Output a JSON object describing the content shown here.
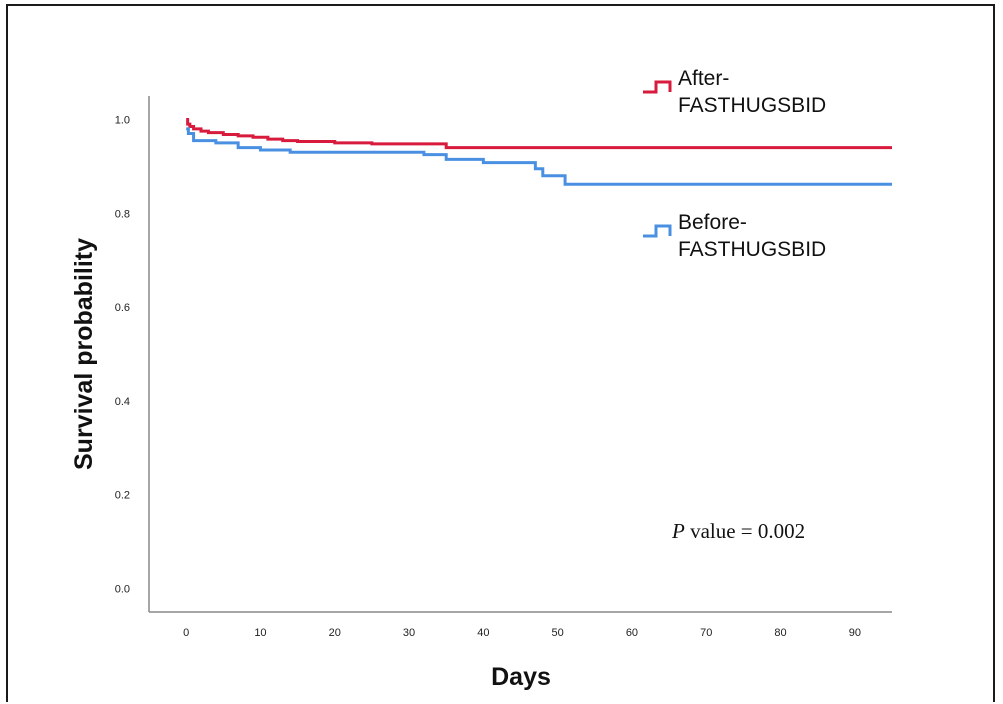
{
  "chart_data": {
    "type": "line",
    "title": "",
    "xlabel": "Days",
    "ylabel": "Survival probability",
    "xlim": [
      -5,
      95
    ],
    "ylim": [
      -0.05,
      1.05
    ],
    "xticks": [
      0,
      10,
      20,
      30,
      40,
      50,
      60,
      70,
      80,
      90
    ],
    "xtick_labels": [
      "0",
      "10",
      "20",
      "30",
      "40",
      "50",
      "60",
      "70",
      "80",
      "90"
    ],
    "yticks": [
      0.0,
      0.2,
      0.4,
      0.6,
      0.8,
      1.0
    ],
    "ytick_labels": [
      "0.0",
      "0.2",
      "0.4",
      "0.6",
      "0.8",
      "1.0"
    ],
    "grid": false,
    "legend_position": "top-right",
    "series": [
      {
        "name": "After-FASTHUGSBID",
        "color": "#d81b3c",
        "step": true,
        "x": [
          0,
          0.2,
          0.5,
          1,
          2,
          3,
          5,
          7,
          9,
          11,
          13,
          15,
          20,
          25,
          35,
          95
        ],
        "y": [
          1.0,
          0.99,
          0.985,
          0.98,
          0.975,
          0.972,
          0.968,
          0.965,
          0.962,
          0.958,
          0.955,
          0.953,
          0.95,
          0.948,
          0.94,
          0.94
        ]
      },
      {
        "name": "Before-FASTHUGSBID",
        "color": "#4a90e2",
        "step": true,
        "x": [
          0,
          0.3,
          1,
          4,
          7,
          10,
          14,
          32,
          35,
          40,
          47,
          48,
          51,
          95
        ],
        "y": [
          0.98,
          0.97,
          0.955,
          0.95,
          0.94,
          0.935,
          0.93,
          0.925,
          0.915,
          0.908,
          0.895,
          0.88,
          0.862,
          0.862
        ]
      }
    ],
    "annotation": {
      "italic": "P",
      "text": " value = 0.002"
    }
  }
}
